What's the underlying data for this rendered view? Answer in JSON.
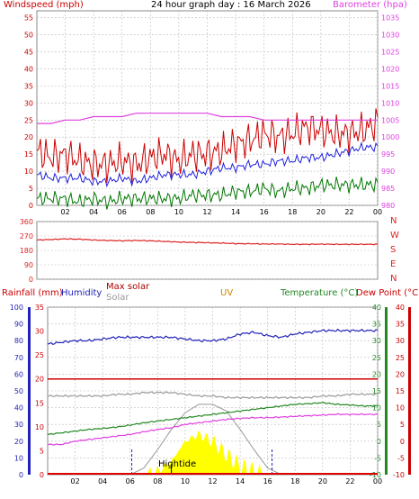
{
  "title": "24 hour graph day : 16 March 2026",
  "colors": {
    "wind": "#cc0000",
    "windavg": "#2020dd",
    "windlow": "#007700",
    "baro": "#e040e0",
    "dir": "#dd2222",
    "humidity": "#2222bb",
    "rain": "#cc0000",
    "solar": "#999999",
    "maxsolar": "#aa0000",
    "uv": "#cc8800",
    "temp": "#228822",
    "dew": "#cc0000",
    "solarfill": "#ffff00",
    "tide": "#000000",
    "grid": "#bbbbbb"
  },
  "labels": {
    "windspeed": "Windspeed (mph)",
    "barometer": "Barometer (hpa)",
    "rainfall": "Rainfall (mm)",
    "humidity": "Humidity",
    "maxsolar": "Max solar",
    "solar": "Solar",
    "uv": "UV",
    "temperature": "Temperature (°C)",
    "dewpoint": "Dew Point (°C)",
    "hightide": "Hightide",
    "compass": [
      "N",
      "W",
      "S",
      "E",
      "N"
    ]
  },
  "chart_data": [
    {
      "type": "line",
      "name": "wind",
      "x_ticks": [
        "02",
        "04",
        "06",
        "08",
        "10",
        "12",
        "14",
        "16",
        "18",
        "20",
        "22",
        "00"
      ],
      "left_axis": {
        "label": "Windspeed (mph)",
        "ticks": [
          0,
          5,
          10,
          15,
          20,
          25,
          30,
          35,
          40,
          45,
          50,
          55
        ],
        "ylim": [
          0,
          57
        ]
      },
      "right_axis": {
        "label": "Barometer (hpa)",
        "ticks": [
          980,
          985,
          990,
          995,
          1000,
          1005,
          1010,
          1015,
          1020,
          1025,
          1030,
          1035
        ],
        "ylim": [
          980,
          1037
        ]
      },
      "series": [
        {
          "key": "gust",
          "axis": "left",
          "values": [
            16,
            14,
            15,
            13,
            12,
            12,
            13,
            12,
            14,
            15,
            13,
            15,
            15,
            16,
            18,
            19,
            21,
            20,
            21,
            23,
            22,
            21,
            21,
            22,
            24
          ]
        },
        {
          "key": "avg",
          "axis": "left",
          "values": [
            9,
            8,
            8,
            8,
            7,
            7,
            8,
            7,
            8,
            9,
            9,
            9,
            10,
            11,
            11,
            12,
            12,
            13,
            13,
            14,
            14,
            15,
            16,
            17,
            17
          ]
        },
        {
          "key": "low",
          "axis": "left",
          "values": [
            2,
            2,
            2,
            1,
            2,
            1,
            2,
            2,
            2,
            2,
            2,
            3,
            3,
            3,
            4,
            4,
            5,
            4,
            5,
            5,
            6,
            6,
            6,
            6,
            6
          ]
        },
        {
          "key": "baro",
          "axis": "right",
          "values": [
            1004,
            1004,
            1005,
            1005,
            1006,
            1006,
            1006,
            1007,
            1007,
            1007,
            1007,
            1007,
            1007,
            1006,
            1006,
            1006,
            1005,
            1005,
            1005,
            1005,
            1005,
            1005,
            1005,
            1005,
            1005
          ]
        }
      ]
    },
    {
      "type": "line",
      "name": "direction",
      "x_ticks": [],
      "left_axis": {
        "ticks": [
          0,
          90,
          180,
          270,
          360
        ],
        "ylim": [
          0,
          360
        ]
      },
      "series": [
        {
          "key": "direction",
          "axis": "left",
          "values": [
            245,
            248,
            252,
            250,
            245,
            242,
            240,
            242,
            240,
            236,
            232,
            230,
            228,
            226,
            222,
            222,
            220,
            220,
            218,
            218,
            219,
            218,
            218,
            218,
            218
          ]
        }
      ]
    },
    {
      "type": "line",
      "name": "weather",
      "x_ticks": [
        "02",
        "04",
        "06",
        "08",
        "10",
        "12",
        "14",
        "16",
        "18",
        "20",
        "22",
        "00"
      ],
      "left_outer_axis": {
        "label": "Rainfall (mm)",
        "ticks": [
          0,
          10,
          20,
          30,
          40,
          50,
          60,
          70,
          80,
          90,
          100
        ],
        "ylim": [
          0,
          100
        ]
      },
      "left_inner_axis": {
        "ticks": [
          0,
          5,
          10,
          15,
          20,
          25,
          30,
          35
        ],
        "ylim": [
          0,
          35
        ]
      },
      "right_inner_axis": {
        "label": "Temperature (°C)",
        "ticks": [
          -10,
          -5,
          0,
          5,
          10,
          15,
          20,
          25,
          30,
          35,
          40
        ],
        "ylim": [
          -10,
          40
        ]
      },
      "right_outer_axis": {
        "label": "Dew Point (°C)",
        "ticks": [
          -10,
          -5,
          0,
          5,
          10,
          15,
          20,
          25,
          30,
          35,
          40
        ],
        "ylim": [
          -10,
          40
        ]
      },
      "series": [
        {
          "key": "humidity",
          "axis": "left_outer",
          "values": [
            78,
            79,
            80,
            80,
            81,
            82,
            82,
            82,
            82,
            82,
            81,
            80,
            80,
            81,
            84,
            85,
            83,
            82,
            84,
            85,
            86,
            86,
            86,
            86,
            86
          ]
        },
        {
          "key": "rain",
          "axis": "left_inner",
          "values": [
            20,
            20,
            20,
            20,
            20,
            20,
            20,
            20,
            20,
            20,
            20,
            20,
            20,
            20,
            20,
            20,
            20,
            20,
            20,
            20,
            20,
            20,
            20,
            20,
            20
          ]
        },
        {
          "key": "solar",
          "axis": "left_outer",
          "values": [
            47,
            47,
            47,
            47,
            47,
            48,
            48,
            49,
            49,
            49,
            48,
            47,
            47,
            46,
            46,
            46,
            46,
            46,
            46,
            46,
            47,
            47,
            48,
            48,
            48
          ]
        },
        {
          "key": "temp",
          "axis": "right_inner",
          "values": [
            2,
            2.5,
            3,
            3.5,
            3.8,
            4.2,
            4.8,
            5.5,
            6,
            6.5,
            7,
            7.5,
            8,
            8.5,
            9,
            9.5,
            10,
            10.5,
            11,
            11.2,
            11.5,
            11,
            10.8,
            10.5,
            10.5
          ]
        },
        {
          "key": "dew",
          "axis": "right_inner",
          "values": [
            -1,
            -1,
            0,
            0.5,
            1,
            1.5,
            2,
            2.8,
            3.5,
            4,
            5,
            5.5,
            6,
            6.5,
            6.8,
            7,
            7,
            7.2,
            7.4,
            7.6,
            7.8,
            8,
            8,
            8,
            8
          ]
        },
        {
          "key": "maxsolar",
          "axis": "left_outer",
          "values": [
            0,
            0,
            0,
            0,
            0,
            0,
            0,
            4,
            15,
            27,
            37,
            42,
            42,
            38,
            27,
            15,
            4,
            0,
            0,
            0,
            0,
            0,
            0,
            0,
            0
          ]
        },
        {
          "key": "uv",
          "axis": "left_outer",
          "values": [
            0,
            0,
            0,
            0,
            0,
            0,
            0,
            0,
            2,
            8,
            20,
            24,
            20,
            12,
            5,
            2,
            0,
            0,
            0,
            0,
            0,
            0,
            0,
            0,
            0
          ]
        }
      ]
    }
  ]
}
